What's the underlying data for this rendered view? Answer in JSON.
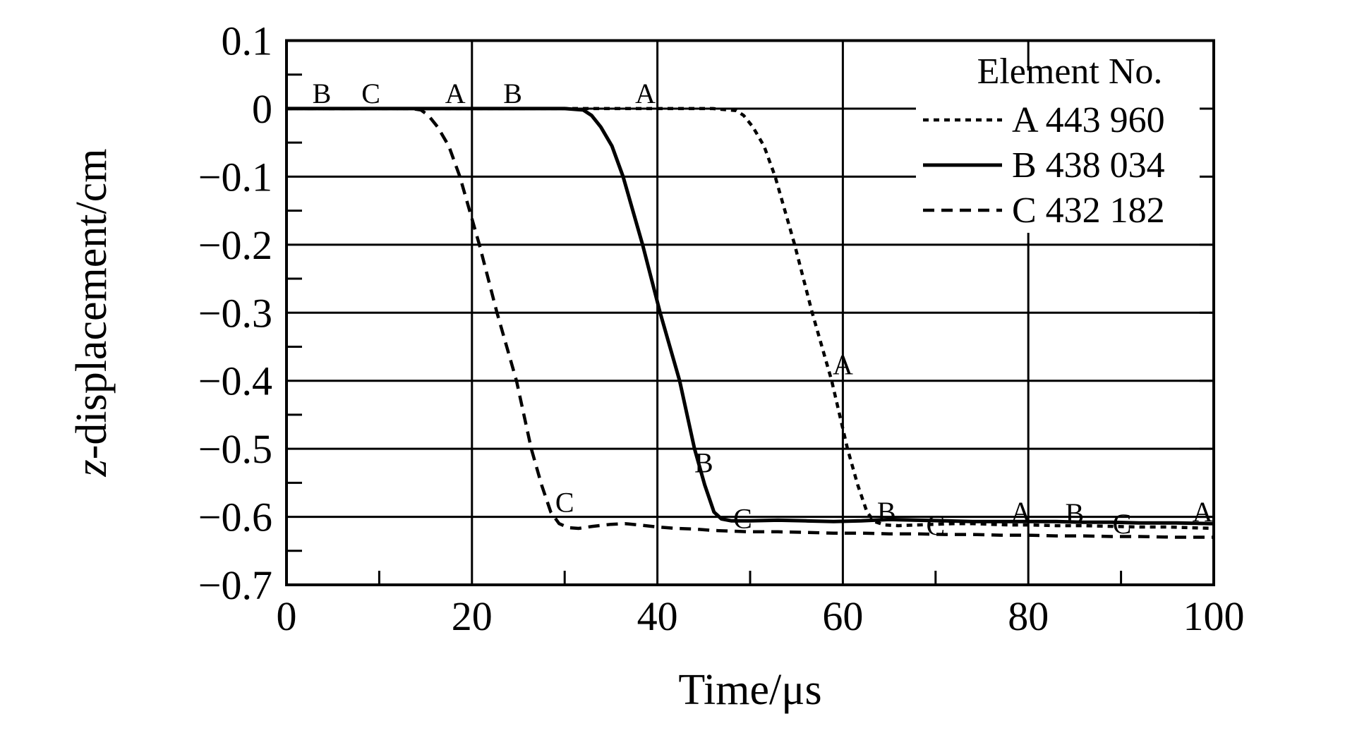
{
  "page": {
    "background": "#ffffff",
    "ink": "#000000"
  },
  "chart_data": {
    "type": "line",
    "title": "",
    "xlabel": "Time/μs",
    "ylabel": {
      "italic": "z",
      "rest": "-displacement/cm",
      "full": "z-displacement/cm"
    },
    "xlim": [
      0,
      100
    ],
    "ylim": [
      -0.7,
      0.1
    ],
    "grid": "major",
    "x_major_ticks": [
      0,
      20,
      40,
      60,
      80,
      100
    ],
    "x_tick_labels": [
      "0",
      "20",
      "40",
      "60",
      "80",
      "100"
    ],
    "x_minor_ticks": [
      10,
      30,
      50,
      70,
      90
    ],
    "y_major_ticks": [
      0.1,
      0,
      -0.1,
      -0.2,
      -0.3,
      -0.4,
      -0.5,
      -0.6,
      -0.7
    ],
    "y_tick_labels": [
      "0.1",
      "0",
      "−0.1",
      "−0.2",
      "−0.3",
      "−0.4",
      "−0.5",
      "−0.6",
      "−0.7"
    ],
    "y_minor_ticks": [
      0.05,
      -0.05,
      -0.15,
      -0.25,
      -0.35,
      -0.45,
      -0.55,
      -0.65
    ],
    "legend": {
      "title": "Element No.",
      "position": "top-right",
      "entries": [
        {
          "series": "A",
          "label": "A 443 960",
          "style": "dotted"
        },
        {
          "series": "B",
          "label": "B 438 034",
          "style": "solid"
        },
        {
          "series": "C",
          "label": "C 432 182",
          "style": "dashed"
        }
      ]
    },
    "series": [
      {
        "name": "A",
        "style": "dotted",
        "dash": "8 7",
        "width": 4.5,
        "color": "#000000",
        "points": [
          [
            0,
            0
          ],
          [
            10,
            0
          ],
          [
            20,
            0
          ],
          [
            30,
            0
          ],
          [
            40,
            0
          ],
          [
            46,
            0
          ],
          [
            48.5,
            -0.003
          ],
          [
            49.3,
            -0.01
          ],
          [
            50.3,
            -0.027
          ],
          [
            51.5,
            -0.055
          ],
          [
            52.7,
            -0.1
          ],
          [
            54.8,
            -0.2
          ],
          [
            56.7,
            -0.3
          ],
          [
            58.8,
            -0.4
          ],
          [
            60.5,
            -0.5
          ],
          [
            61.6,
            -0.553
          ],
          [
            62.6,
            -0.593
          ],
          [
            63.4,
            -0.607
          ],
          [
            64.5,
            -0.612
          ],
          [
            66,
            -0.613
          ],
          [
            68,
            -0.612
          ],
          [
            70,
            -0.611
          ],
          [
            72,
            -0.61
          ],
          [
            74,
            -0.61
          ],
          [
            76,
            -0.611
          ],
          [
            78,
            -0.612
          ],
          [
            80,
            -0.612
          ],
          [
            83,
            -0.613
          ],
          [
            86,
            -0.613
          ],
          [
            89,
            -0.614
          ],
          [
            92,
            -0.615
          ],
          [
            95,
            -0.615
          ],
          [
            100,
            -0.617
          ]
        ]
      },
      {
        "name": "B",
        "style": "solid",
        "dash": "",
        "width": 5,
        "color": "#000000",
        "points": [
          [
            0,
            0
          ],
          [
            10,
            0
          ],
          [
            20,
            0
          ],
          [
            30,
            0
          ],
          [
            32,
            -0.002
          ],
          [
            32.9,
            -0.01
          ],
          [
            33.9,
            -0.027
          ],
          [
            35.1,
            -0.055
          ],
          [
            36.3,
            -0.1
          ],
          [
            38.4,
            -0.2
          ],
          [
            40.3,
            -0.3
          ],
          [
            42.4,
            -0.4
          ],
          [
            44,
            -0.5
          ],
          [
            45.1,
            -0.553
          ],
          [
            46.1,
            -0.593
          ],
          [
            46.9,
            -0.603
          ],
          [
            48,
            -0.606
          ],
          [
            50,
            -0.606
          ],
          [
            53,
            -0.605
          ],
          [
            56,
            -0.606
          ],
          [
            59,
            -0.607
          ],
          [
            62,
            -0.606
          ],
          [
            65,
            -0.604
          ],
          [
            68,
            -0.605
          ],
          [
            71,
            -0.606
          ],
          [
            74,
            -0.607
          ],
          [
            77,
            -0.607
          ],
          [
            80,
            -0.607
          ],
          [
            83,
            -0.607
          ],
          [
            86,
            -0.608
          ],
          [
            89,
            -0.608
          ],
          [
            92,
            -0.609
          ],
          [
            96,
            -0.609
          ],
          [
            100,
            -0.61
          ]
        ]
      },
      {
        "name": "C",
        "style": "dashed",
        "dash": "16 10",
        "width": 4.5,
        "color": "#000000",
        "points": [
          [
            0,
            0
          ],
          [
            7,
            0
          ],
          [
            13.5,
            0
          ],
          [
            14.5,
            -0.002
          ],
          [
            15.3,
            -0.01
          ],
          [
            16.3,
            -0.027
          ],
          [
            17.5,
            -0.055
          ],
          [
            18.7,
            -0.1
          ],
          [
            20.8,
            -0.2
          ],
          [
            22.7,
            -0.3
          ],
          [
            24.8,
            -0.4
          ],
          [
            26.4,
            -0.5
          ],
          [
            27.5,
            -0.553
          ],
          [
            28.5,
            -0.593
          ],
          [
            29.4,
            -0.61
          ],
          [
            30.4,
            -0.616
          ],
          [
            31.5,
            -0.617
          ],
          [
            33,
            -0.614
          ],
          [
            35,
            -0.611
          ],
          [
            36.5,
            -0.61
          ],
          [
            38,
            -0.612
          ],
          [
            40,
            -0.615
          ],
          [
            42,
            -0.617
          ],
          [
            44,
            -0.618
          ],
          [
            46,
            -0.62
          ],
          [
            48,
            -0.621
          ],
          [
            50,
            -0.622
          ],
          [
            53,
            -0.622
          ],
          [
            56,
            -0.623
          ],
          [
            59,
            -0.624
          ],
          [
            62,
            -0.624
          ],
          [
            65,
            -0.625
          ],
          [
            68,
            -0.625
          ],
          [
            71,
            -0.626
          ],
          [
            74,
            -0.626
          ],
          [
            77,
            -0.627
          ],
          [
            80,
            -0.627
          ],
          [
            83,
            -0.628
          ],
          [
            86,
            -0.628
          ],
          [
            89,
            -0.629
          ],
          [
            92,
            -0.629
          ],
          [
            96,
            -0.63
          ],
          [
            100,
            -0.63
          ]
        ]
      }
    ],
    "point_labels": [
      {
        "text": "B",
        "x": 3.8,
        "y": 0.023
      },
      {
        "text": "C",
        "x": 9.1,
        "y": 0.023
      },
      {
        "text": "A",
        "x": 18.2,
        "y": 0.023
      },
      {
        "text": "B",
        "x": 24.4,
        "y": 0.023
      },
      {
        "text": "A",
        "x": 38.7,
        "y": 0.023
      },
      {
        "text": "C",
        "x": 30.0,
        "y": -0.578
      },
      {
        "text": "B",
        "x": 45.0,
        "y": -0.52
      },
      {
        "text": "C",
        "x": 49.2,
        "y": -0.602
      },
      {
        "text": "A",
        "x": 60.0,
        "y": -0.376
      },
      {
        "text": "B",
        "x": 64.7,
        "y": -0.592
      },
      {
        "text": "C",
        "x": 70.0,
        "y": -0.612
      },
      {
        "text": "A",
        "x": 79.2,
        "y": -0.592
      },
      {
        "text": "B",
        "x": 85.0,
        "y": -0.594
      },
      {
        "text": "C",
        "x": 90.1,
        "y": -0.61
      },
      {
        "text": "A",
        "x": 98.8,
        "y": -0.592
      }
    ]
  }
}
